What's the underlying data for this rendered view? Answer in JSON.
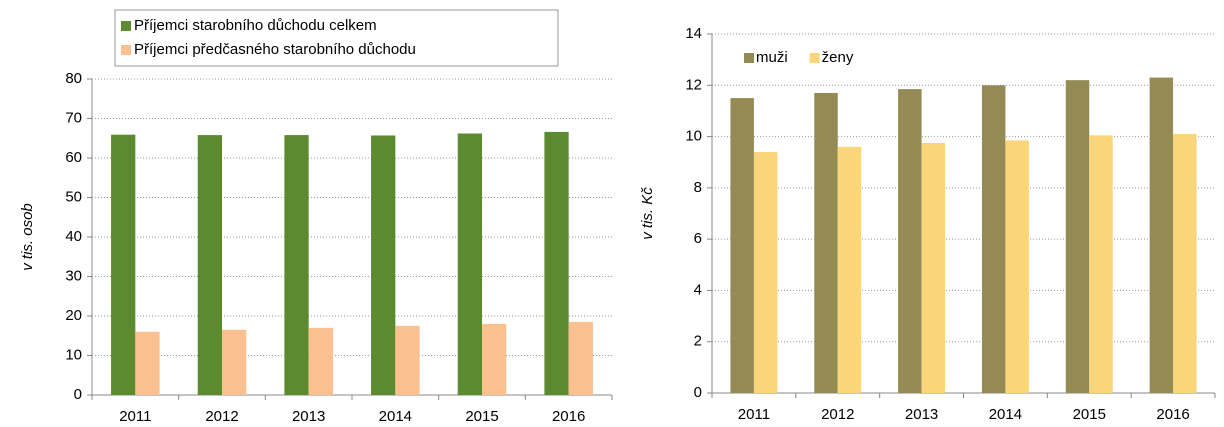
{
  "chart_data": [
    {
      "type": "bar",
      "y_label": "v tis. osob",
      "categories": [
        "2011",
        "2012",
        "2013",
        "2014",
        "2015",
        "2016"
      ],
      "series": [
        {
          "name": "Příjemci starobního důchodu celkem",
          "color": "#5b8a2f",
          "values": [
            65.9,
            65.8,
            65.8,
            65.7,
            66.2,
            66.6
          ]
        },
        {
          "name": "Příjemci předčasného starobního důchodu",
          "color": "#fac090",
          "values": [
            16.0,
            16.5,
            17.0,
            17.5,
            18.0,
            18.5
          ]
        }
      ],
      "ylim": [
        0,
        80
      ],
      "yticks": [
        0,
        10,
        20,
        30,
        40,
        50,
        60,
        70,
        80
      ],
      "grid": true,
      "legend": "top"
    },
    {
      "type": "bar",
      "y_label": "v tis. Kč",
      "categories": [
        "2011",
        "2012",
        "2013",
        "2014",
        "2015",
        "2016"
      ],
      "series": [
        {
          "name": "muži",
          "color": "#948a54",
          "values": [
            11.5,
            11.7,
            11.85,
            12.0,
            12.2,
            12.3
          ]
        },
        {
          "name": "ženy",
          "color": "#fad57a",
          "values": [
            9.4,
            9.6,
            9.75,
            9.85,
            10.05,
            10.1
          ]
        }
      ],
      "ylim": [
        0,
        14
      ],
      "yticks": [
        0,
        2,
        4,
        6,
        8,
        10,
        12,
        14
      ],
      "grid": true,
      "legend": "top-left"
    }
  ]
}
